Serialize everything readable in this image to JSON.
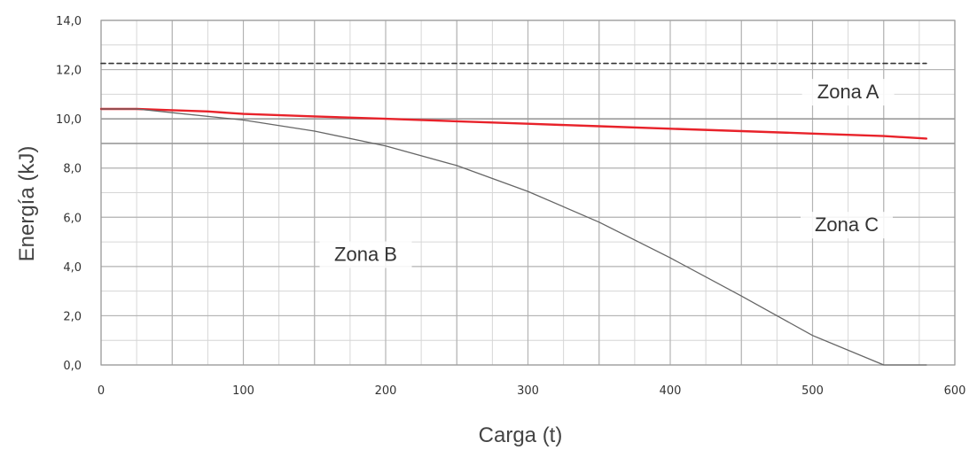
{
  "chart_data": {
    "type": "line",
    "xlabel": "Carga (t)",
    "ylabel": "Energía (kJ)",
    "xlim": [
      0,
      600
    ],
    "ylim": [
      0,
      14
    ],
    "x_ticks": [
      "0",
      "100",
      "200",
      "300",
      "400",
      "500",
      "600"
    ],
    "y_ticks": [
      "0,0",
      "2,0",
      "4,0",
      "6,0",
      "8,0",
      "10,0",
      "12,0",
      "14,0"
    ],
    "grid": true,
    "series": [
      {
        "color": "#e8222a",
        "style": "solid",
        "x": [
          0,
          25,
          50,
          75,
          100,
          150,
          200,
          250,
          300,
          350,
          400,
          450,
          500,
          550,
          580
        ],
        "y": [
          10.4,
          10.4,
          10.35,
          10.3,
          10.2,
          10.1,
          10.0,
          9.9,
          9.8,
          9.7,
          9.6,
          9.5,
          9.4,
          9.3,
          9.2
        ]
      },
      {
        "color": "#666666",
        "style": "solid",
        "x": [
          0,
          25,
          50,
          100,
          150,
          200,
          250,
          300,
          350,
          400,
          450,
          500,
          550,
          580
        ],
        "y": [
          10.4,
          10.4,
          10.25,
          9.95,
          9.5,
          8.9,
          8.1,
          7.05,
          5.8,
          4.35,
          2.8,
          1.2,
          -0.45,
          0.0
        ]
      },
      {
        "color": "#333333",
        "style": "dashed",
        "x": [
          0,
          580
        ],
        "y": [
          12.25,
          12.25
        ]
      }
    ],
    "annotations": [
      {
        "text": "Zona A",
        "x": 525,
        "y": 10.9
      },
      {
        "text": "Zona B",
        "x": 186,
        "y": 4.3
      },
      {
        "text": "Zona C",
        "x": 524,
        "y": 5.5
      }
    ]
  }
}
